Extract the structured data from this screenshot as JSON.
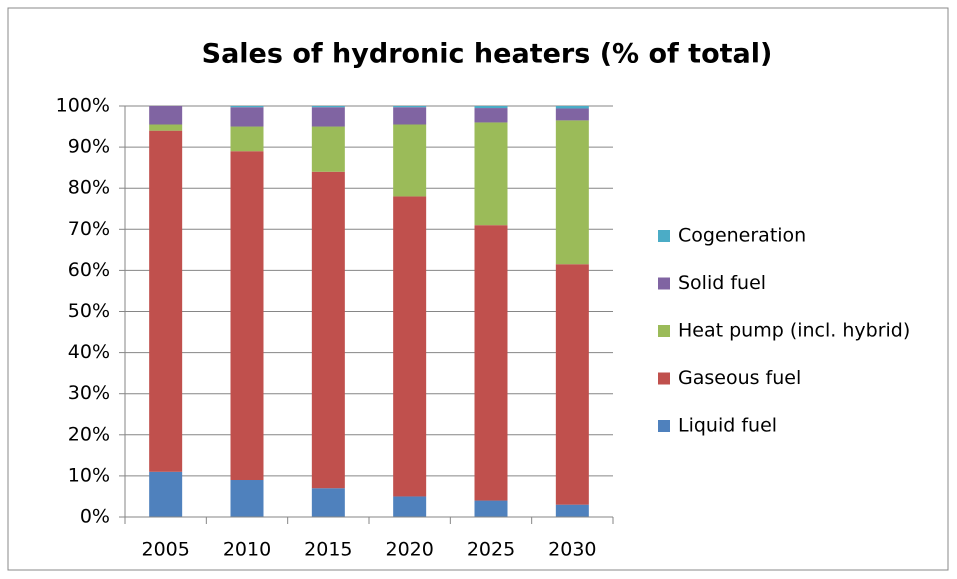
{
  "chart_data": {
    "type": "stacked_bar",
    "title": "Sales of hydronic heaters (% of total)",
    "categories": [
      "2005",
      "2010",
      "2015",
      "2020",
      "2025",
      "2030"
    ],
    "series": [
      {
        "name": "Liquid fuel",
        "color": "#4f81bd",
        "values": [
          11,
          9,
          7,
          5,
          4,
          3
        ]
      },
      {
        "name": "Gaseous fuel",
        "color": "#c0504d",
        "values": [
          83,
          80,
          77,
          73,
          67,
          58.5
        ]
      },
      {
        "name": "Heat pump (incl. hybrid)",
        "color": "#9bbb59",
        "values": [
          1.5,
          6,
          11,
          17.5,
          25,
          35
        ]
      },
      {
        "name": "Solid fuel",
        "color": "#8064a2",
        "values": [
          4.5,
          4.7,
          4.7,
          4.2,
          3.5,
          2.9
        ]
      },
      {
        "name": "Cogeneration",
        "color": "#4bacc6",
        "values": [
          0,
          0.3,
          0.3,
          0.3,
          0.5,
          0.6
        ]
      }
    ],
    "ylim": [
      0,
      100
    ],
    "yticks": [
      {
        "value": 0,
        "label": "0%"
      },
      {
        "value": 10,
        "label": "10%"
      },
      {
        "value": 20,
        "label": "20%"
      },
      {
        "value": 30,
        "label": "30%"
      },
      {
        "value": 40,
        "label": "40%"
      },
      {
        "value": 50,
        "label": "50%"
      },
      {
        "value": 60,
        "label": "60%"
      },
      {
        "value": 70,
        "label": "70%"
      },
      {
        "value": 80,
        "label": "80%"
      },
      {
        "value": 90,
        "label": "90%"
      },
      {
        "value": 100,
        "label": "100%"
      }
    ],
    "grid": true,
    "legend": "right"
  }
}
